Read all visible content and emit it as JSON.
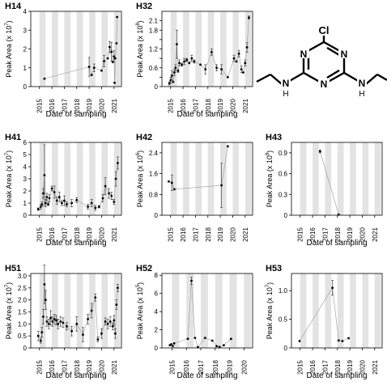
{
  "chart_data": [
    {
      "type": "scatter",
      "title": "H14",
      "xlabel": "Date of sampling",
      "ylabel": "Peak Area (x 10",
      "ylabel_exp": "7",
      "ylim": [
        0,
        4
      ],
      "yticks": [
        0,
        1,
        2,
        3,
        4
      ],
      "xlim": [
        2014.3,
        2021.6
      ],
      "xticks": [
        2015,
        2016,
        2017,
        2018,
        2019,
        2020,
        2021
      ],
      "show_xlabel": true,
      "series": [
        {
          "x": [
            2015.4,
            2019.0,
            2019.2,
            2019.4,
            2020.0,
            2020.2,
            2020.5,
            2020.65,
            2020.8,
            2020.9,
            2021.0,
            2021.05,
            2021.1,
            2021.2,
            2021.25
          ],
          "y": [
            0.42,
            1.05,
            0.62,
            1.0,
            0.85,
            1.35,
            1.5,
            2.1,
            1.85,
            1.3,
            1.6,
            0.2,
            1.5,
            2.3,
            3.7
          ],
          "err": [
            0,
            0.5,
            0,
            0.2,
            0,
            0.3,
            0,
            0.3,
            0.5,
            0,
            0.3,
            0,
            0,
            0,
            0
          ]
        }
      ]
    },
    {
      "type": "scatter",
      "title": "H32",
      "xlabel": "Date of sampling",
      "ylabel": "Peak Area (x 10",
      "ylabel_exp": "8",
      "ylim": [
        0,
        2.4
      ],
      "yticks": [
        0,
        0.3,
        0.6,
        0.9,
        1.2,
        1.5,
        1.8,
        2.1
      ],
      "ytick_labels": [
        "0",
        "",
        "0.6",
        "",
        "1.2",
        "",
        "1.8",
        "2.1"
      ],
      "xlim": [
        2014.3,
        2021.6
      ],
      "xticks": [
        2015,
        2016,
        2017,
        2018,
        2019,
        2020,
        2021
      ],
      "show_xlabel": true,
      "series": [
        {
          "x": [
            2014.9,
            2015.0,
            2015.1,
            2015.2,
            2015.3,
            2015.4,
            2015.5,
            2015.6,
            2015.7,
            2015.9,
            2016.1,
            2016.3,
            2016.5,
            2016.7,
            2016.9,
            2017.4,
            2017.8,
            2018.3,
            2018.7,
            2019.1,
            2019.6,
            2020.1,
            2020.3,
            2020.5,
            2020.7,
            2020.85,
            2021.0,
            2021.15,
            2021.3
          ],
          "y": [
            0.1,
            0.2,
            0.35,
            0.15,
            0.45,
            0.6,
            1.35,
            0.5,
            0.75,
            0.7,
            0.8,
            0.85,
            0.75,
            0.9,
            0.8,
            0.7,
            0.55,
            1.1,
            0.6,
            0.55,
            0.3,
            0.9,
            0.8,
            1.05,
            0.55,
            0.45,
            0.75,
            1.25,
            2.2
          ],
          "err": [
            0.05,
            0.1,
            0.15,
            0,
            0.1,
            0.1,
            0.45,
            0.05,
            0.1,
            0.05,
            0.1,
            0.05,
            0,
            0.1,
            0.05,
            0,
            0.15,
            0.1,
            0.1,
            0.15,
            0,
            0.1,
            0,
            0.1,
            0.1,
            0,
            0.1,
            0.15,
            0.05
          ]
        }
      ]
    },
    {
      "type": "scatter",
      "title": "H41",
      "xlabel": "Date of sampling",
      "ylabel": "Peak Area (x 10",
      "ylabel_exp": "7",
      "ylim": [
        0,
        6
      ],
      "yticks": [
        0,
        1,
        2,
        3,
        4,
        5,
        6
      ],
      "xlim": [
        2014.3,
        2021.6
      ],
      "xticks": [
        2015,
        2016,
        2017,
        2018,
        2019,
        2020,
        2021
      ],
      "show_xlabel": true,
      "series": [
        {
          "x": [
            2014.9,
            2015.1,
            2015.2,
            2015.3,
            2015.4,
            2015.5,
            2015.6,
            2015.7,
            2015.8,
            2016.0,
            2016.2,
            2016.4,
            2016.6,
            2016.8,
            2017.0,
            2017.2,
            2017.6,
            2018.0,
            2018.9,
            2019.2,
            2019.5,
            2019.8,
            2020.1,
            2020.3,
            2020.6,
            2020.8,
            2021.0,
            2021.15,
            2021.3
          ],
          "y": [
            0.5,
            0.7,
            0.9,
            1.8,
            3.3,
            1.0,
            1.5,
            0.9,
            1.4,
            2.2,
            1.9,
            1.2,
            1.5,
            1.0,
            1.2,
            0.9,
            1.0,
            1.25,
            0.7,
            1.0,
            0.6,
            0.7,
            1.4,
            2.4,
            1.8,
            1.6,
            1.1,
            3.0,
            4.3
          ],
          "err": [
            0.1,
            0.2,
            0.2,
            0.4,
            2.5,
            0.3,
            0.3,
            0.1,
            0.3,
            0.2,
            0.5,
            0.3,
            0.4,
            0.2,
            0.4,
            0.2,
            0.3,
            0.2,
            0.2,
            0.3,
            0.2,
            0.1,
            0.3,
            0.7,
            0.4,
            0.3,
            0.2,
            0.6,
            0.5
          ]
        }
      ]
    },
    {
      "type": "scatter",
      "title": "H42",
      "xlabel": "Date of sampling",
      "ylabel": "Peak Area (x 10",
      "ylabel_exp": "6",
      "ylim": [
        0,
        2.8
      ],
      "yticks": [
        0,
        0.8,
        1.6,
        2.4
      ],
      "xlim": [
        2014.3,
        2021.6
      ],
      "xticks": [
        2015,
        2016,
        2017,
        2018,
        2019,
        2020,
        2021
      ],
      "show_xlabel": false,
      "series": [
        {
          "x": [
            2014.85,
            2015.1,
            2015.3,
            2019.1,
            2019.6
          ],
          "y": [
            1.3,
            1.25,
            1.0,
            1.15,
            2.65
          ],
          "err": [
            0,
            0.3,
            0,
            0.85,
            0
          ]
        }
      ]
    },
    {
      "type": "scatter",
      "title": "H43",
      "xlabel": "Date of sampling",
      "ylabel": "Peak Area (x 10",
      "ylabel_exp": "8",
      "ylim": [
        0,
        1.05
      ],
      "yticks": [
        0,
        0.3,
        0.6,
        0.9
      ],
      "xlim": [
        2014.3,
        2021.6
      ],
      "xticks": [
        2015,
        2016,
        2017,
        2018,
        2019,
        2020,
        2021
      ],
      "show_xlabel": true,
      "series": [
        {
          "x": [
            2016.6,
            2018.1
          ],
          "y": [
            0.92,
            0.01
          ],
          "err": [
            0.02,
            0
          ]
        }
      ]
    },
    {
      "type": "scatter",
      "title": "H51",
      "xlabel": "Date of sampling",
      "ylabel": "Peak Area (x 10",
      "ylabel_exp": "7",
      "ylim": [
        0,
        3.1
      ],
      "yticks": [
        0,
        0.5,
        1.0,
        1.5,
        2.0,
        2.5,
        3.0
      ],
      "ytick_labels": [
        "0",
        "0.5",
        "1.0",
        "1.5",
        "2.0",
        "2.5",
        "3.0"
      ],
      "xlim": [
        2014.3,
        2021.6
      ],
      "xticks": [
        2015,
        2016,
        2017,
        2018,
        2019,
        2020,
        2021
      ],
      "show_xlabel": true,
      "series": [
        {
          "x": [
            2014.9,
            2015.1,
            2015.2,
            2015.3,
            2015.4,
            2015.5,
            2015.6,
            2015.75,
            2015.9,
            2016.05,
            2016.2,
            2016.35,
            2016.5,
            2016.7,
            2016.9,
            2017.2,
            2017.6,
            2018.0,
            2018.5,
            2018.9,
            2019.2,
            2019.5,
            2019.7,
            2020.0,
            2020.3,
            2020.5,
            2020.7,
            2020.9,
            2021.0,
            2021.1,
            2021.2,
            2021.3
          ],
          "y": [
            0.5,
            0.3,
            0.65,
            1.3,
            2.65,
            2.0,
            1.1,
            1.0,
            1.25,
            1.1,
            1.2,
            1.15,
            1.0,
            1.1,
            1.05,
            0.9,
            0.7,
            1.0,
            0.55,
            1.2,
            1.55,
            2.1,
            0.35,
            0.6,
            1.1,
            1.0,
            1.1,
            0.9,
            1.15,
            0.6,
            1.8,
            2.5
          ],
          "err": [
            0.2,
            0.1,
            0.2,
            0.3,
            0.8,
            0.4,
            0.2,
            0.2,
            0.3,
            0.2,
            0.2,
            0.2,
            0.2,
            0.2,
            0.2,
            0.15,
            0.2,
            0.3,
            0.3,
            0.2,
            0.3,
            0.15,
            0.1,
            0.2,
            0.15,
            0.2,
            0.2,
            0.15,
            0.2,
            0.2,
            0.2,
            0.15
          ]
        }
      ]
    },
    {
      "type": "scatter",
      "title": "H52",
      "xlabel": "Date of sampling",
      "ylabel": "Peak Area (x 10",
      "ylabel_exp": "5",
      "ylim": [
        0,
        8.2
      ],
      "yticks": [
        0,
        2,
        4,
        6,
        8
      ],
      "xlim": [
        2014.3,
        2020.6
      ],
      "xticks": [
        2015,
        2016,
        2017,
        2018,
        2019,
        2020
      ],
      "show_xlabel": true,
      "series": [
        {
          "x": [
            2014.85,
            2014.95,
            2015.05,
            2015.15,
            2016.1,
            2016.35,
            2016.6,
            2016.8,
            2017.3,
            2017.8,
            2018.1,
            2018.3,
            2018.6,
            2019.1
          ],
          "y": [
            0.3,
            0.4,
            0.2,
            0.5,
            1.0,
            7.4,
            1.1,
            0.1,
            1.1,
            0.8,
            0.2,
            0.1,
            0.3,
            1.0
          ],
          "err": [
            0,
            0,
            0,
            0,
            0,
            0.4,
            0,
            0,
            0,
            0,
            0,
            0,
            0,
            0
          ]
        }
      ]
    },
    {
      "type": "scatter",
      "title": "H53",
      "xlabel": "Date of sampling",
      "ylabel": "Peak Area (x 10",
      "ylabel_exp": "7",
      "ylim": [
        0,
        1.3
      ],
      "yticks": [
        0,
        0.5,
        1.0
      ],
      "ytick_labels": [
        "0",
        "0.5",
        "1.0"
      ],
      "xlim": [
        2014.3,
        2021.6
      ],
      "xticks": [
        2015,
        2016,
        2017,
        2018,
        2019,
        2020,
        2021
      ],
      "show_xlabel": true,
      "series": [
        {
          "x": [
            2014.95,
            2017.6,
            2018.1,
            2018.4,
            2018.9
          ],
          "y": [
            0.12,
            1.05,
            0.13,
            0.12,
            0.17
          ],
          "err": [
            0,
            0.13,
            0,
            0,
            0
          ]
        }
      ]
    }
  ],
  "molecule": {
    "top_atom": "Cl",
    "ring_atoms": [
      "N",
      "N",
      "N"
    ],
    "substituents": [
      "N",
      "N"
    ],
    "h_labels": [
      "H",
      "H"
    ]
  }
}
